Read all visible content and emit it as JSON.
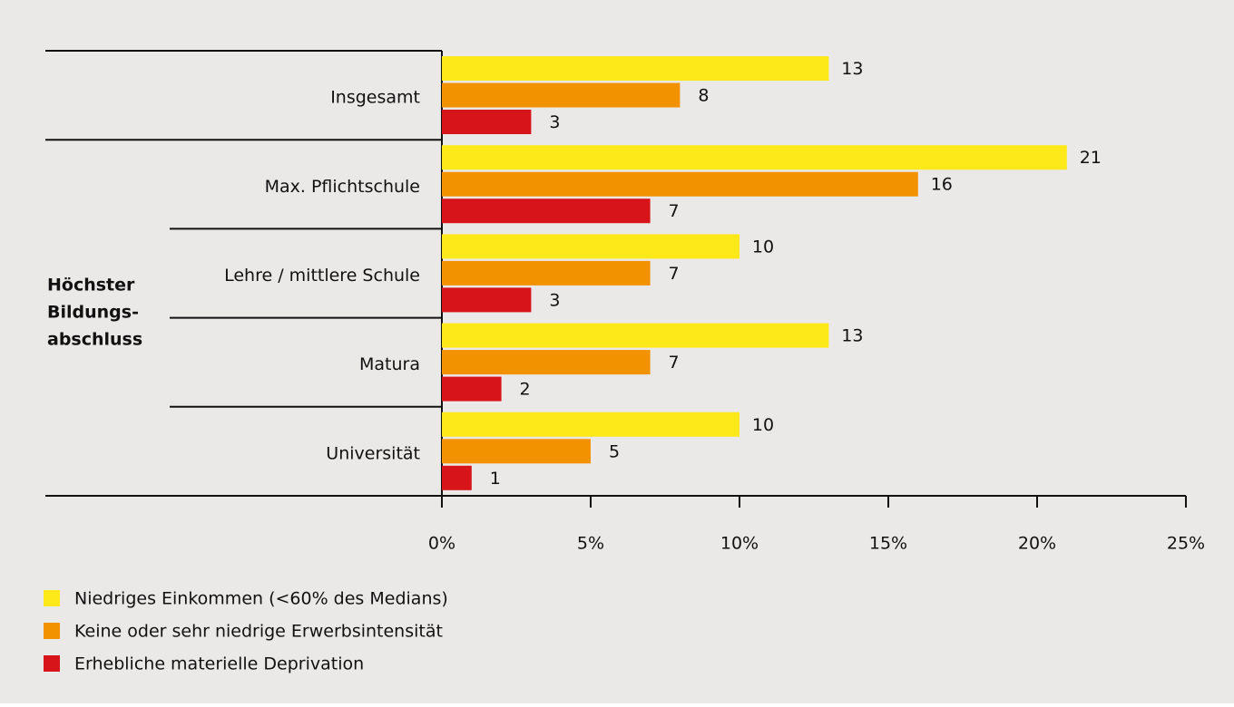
{
  "chart_data": {
    "type": "barh",
    "group_label": [
      "Höchster",
      "Bildungs-",
      "abschluss"
    ],
    "categories": [
      "Insgesamt",
      "Max. Pflichtschule",
      "Lehre / mittlere Schule",
      "Matura",
      "Universität"
    ],
    "series": [
      {
        "name": "Niedriges Einkommen (<60% des Medians)",
        "color": "#fde81a",
        "values": [
          13,
          21,
          10,
          13,
          10
        ]
      },
      {
        "name": "Keine oder sehr niedrige Erwerbsintensität",
        "color": "#f39200",
        "values": [
          8,
          16,
          7,
          7,
          5
        ]
      },
      {
        "name": "Erhebliche materielle Deprivation",
        "color": "#d7141a",
        "values": [
          3,
          7,
          3,
          2,
          1
        ]
      }
    ],
    "xlim": [
      0,
      25
    ],
    "xticks": [
      {
        "value": 0,
        "label": "0%"
      },
      {
        "value": 5,
        "label": "5%"
      },
      {
        "value": 10,
        "label": "10%"
      },
      {
        "value": 15,
        "label": "15%"
      },
      {
        "value": 20,
        "label": "20%"
      },
      {
        "value": 25,
        "label": "25%"
      }
    ],
    "legend": "bottom-left"
  }
}
